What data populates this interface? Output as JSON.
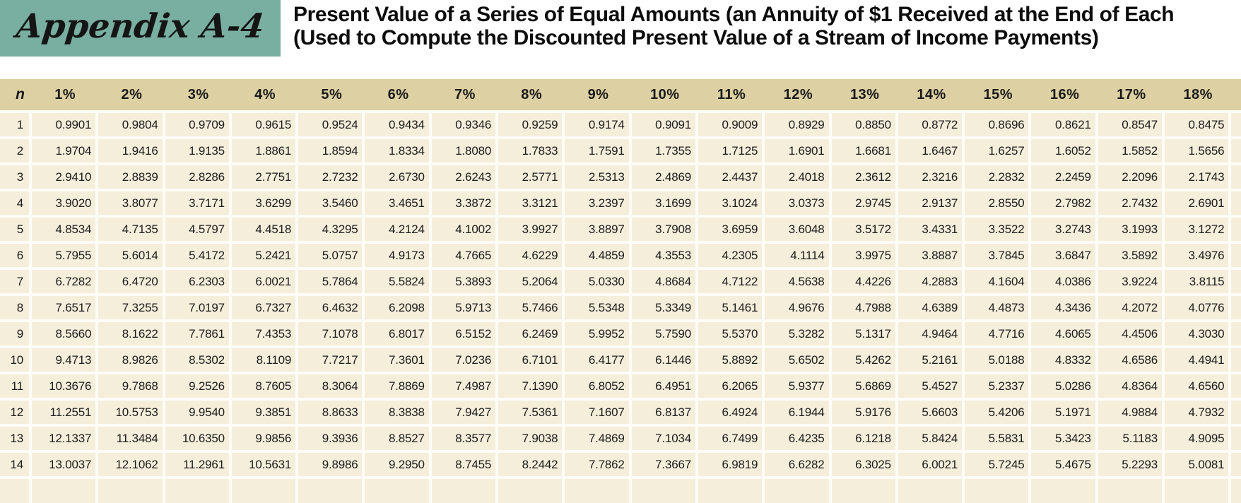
{
  "appendix": {
    "label": "Appendix A-4"
  },
  "title": {
    "line1": "Present Value of a Series of Equal Amounts (an Annuity of $1 Received at the End of Each",
    "line2": "(Used to Compute the Discounted Present Value of a Stream of Income Payments)"
  },
  "colors": {
    "appendix_box": "#78afa0",
    "header_band": "#ddd0a2",
    "cell_background": "#f5eedb",
    "text": "#1c1c1c"
  },
  "table": {
    "col_headers": [
      "n",
      "1%",
      "2%",
      "3%",
      "4%",
      "5%",
      "6%",
      "7%",
      "8%",
      "9%",
      "10%",
      "11%",
      "12%",
      "13%",
      "14%",
      "15%",
      "16%",
      "17%",
      "18%"
    ],
    "rows": [
      {
        "n": "1",
        "values": [
          "0.9901",
          "0.9804",
          "0.9709",
          "0.9615",
          "0.9524",
          "0.9434",
          "0.9346",
          "0.9259",
          "0.9174",
          "0.9091",
          "0.9009",
          "0.8929",
          "0.8850",
          "0.8772",
          "0.8696",
          "0.8621",
          "0.8547",
          "0.8475"
        ]
      },
      {
        "n": "2",
        "values": [
          "1.9704",
          "1.9416",
          "1.9135",
          "1.8861",
          "1.8594",
          "1.8334",
          "1.8080",
          "1.7833",
          "1.7591",
          "1.7355",
          "1.7125",
          "1.6901",
          "1.6681",
          "1.6467",
          "1.6257",
          "1.6052",
          "1.5852",
          "1.5656"
        ]
      },
      {
        "n": "3",
        "values": [
          "2.9410",
          "2.8839",
          "2.8286",
          "2.7751",
          "2.7232",
          "2.6730",
          "2.6243",
          "2.5771",
          "2.5313",
          "2.4869",
          "2.4437",
          "2.4018",
          "2.3612",
          "2.3216",
          "2.2832",
          "2.2459",
          "2.2096",
          "2.1743"
        ]
      },
      {
        "n": "4",
        "values": [
          "3.9020",
          "3.8077",
          "3.7171",
          "3.6299",
          "3.5460",
          "3.4651",
          "3.3872",
          "3.3121",
          "3.2397",
          "3.1699",
          "3.1024",
          "3.0373",
          "2.9745",
          "2.9137",
          "2.8550",
          "2.7982",
          "2.7432",
          "2.6901"
        ]
      },
      {
        "n": "5",
        "values": [
          "4.8534",
          "4.7135",
          "4.5797",
          "4.4518",
          "4.3295",
          "4.2124",
          "4.1002",
          "3.9927",
          "3.8897",
          "3.7908",
          "3.6959",
          "3.6048",
          "3.5172",
          "3.4331",
          "3.3522",
          "3.2743",
          "3.1993",
          "3.1272"
        ]
      },
      {
        "n": "6",
        "values": [
          "5.7955",
          "5.6014",
          "5.4172",
          "5.2421",
          "5.0757",
          "4.9173",
          "4.7665",
          "4.6229",
          "4.4859",
          "4.3553",
          "4.2305",
          "4.1114",
          "3.9975",
          "3.8887",
          "3.7845",
          "3.6847",
          "3.5892",
          "3.4976"
        ]
      },
      {
        "n": "7",
        "values": [
          "6.7282",
          "6.4720",
          "6.2303",
          "6.0021",
          "5.7864",
          "5.5824",
          "5.3893",
          "5.2064",
          "5.0330",
          "4.8684",
          "4.7122",
          "4.5638",
          "4.4226",
          "4.2883",
          "4.1604",
          "4.0386",
          "3.9224",
          "3.8115"
        ]
      },
      {
        "n": "8",
        "values": [
          "7.6517",
          "7.3255",
          "7.0197",
          "6.7327",
          "6.4632",
          "6.2098",
          "5.9713",
          "5.7466",
          "5.5348",
          "5.3349",
          "5.1461",
          "4.9676",
          "4.7988",
          "4.6389",
          "4.4873",
          "4.3436",
          "4.2072",
          "4.0776"
        ]
      },
      {
        "n": "9",
        "values": [
          "8.5660",
          "8.1622",
          "7.7861",
          "7.4353",
          "7.1078",
          "6.8017",
          "6.5152",
          "6.2469",
          "5.9952",
          "5.7590",
          "5.5370",
          "5.3282",
          "5.1317",
          "4.9464",
          "4.7716",
          "4.6065",
          "4.4506",
          "4.3030"
        ]
      },
      {
        "n": "10",
        "values": [
          "9.4713",
          "8.9826",
          "8.5302",
          "8.1109",
          "7.7217",
          "7.3601",
          "7.0236",
          "6.7101",
          "6.4177",
          "6.1446",
          "5.8892",
          "5.6502",
          "5.4262",
          "5.2161",
          "5.0188",
          "4.8332",
          "4.6586",
          "4.4941"
        ]
      },
      {
        "n": "11",
        "values": [
          "10.3676",
          "9.7868",
          "9.2526",
          "8.7605",
          "8.3064",
          "7.8869",
          "7.4987",
          "7.1390",
          "6.8052",
          "6.4951",
          "6.2065",
          "5.9377",
          "5.6869",
          "5.4527",
          "5.2337",
          "5.0286",
          "4.8364",
          "4.6560"
        ]
      },
      {
        "n": "12",
        "values": [
          "11.2551",
          "10.5753",
          "9.9540",
          "9.3851",
          "8.8633",
          "8.3838",
          "7.9427",
          "7.5361",
          "7.1607",
          "6.8137",
          "6.4924",
          "6.1944",
          "5.9176",
          "5.6603",
          "5.4206",
          "5.1971",
          "4.9884",
          "4.7932"
        ]
      },
      {
        "n": "13",
        "values": [
          "12.1337",
          "11.3484",
          "10.6350",
          "9.9856",
          "9.3936",
          "8.8527",
          "8.3577",
          "7.9038",
          "7.4869",
          "7.1034",
          "6.7499",
          "6.4235",
          "6.1218",
          "5.8424",
          "5.5831",
          "5.3423",
          "5.1183",
          "4.9095"
        ]
      },
      {
        "n": "14",
        "values": [
          "13.0037",
          "12.1062",
          "11.2961",
          "10.5631",
          "9.8986",
          "9.2950",
          "8.7455",
          "8.2442",
          "7.7862",
          "7.3667",
          "6.9819",
          "6.6282",
          "6.3025",
          "6.0021",
          "5.7245",
          "5.4675",
          "5.2293",
          "5.0081"
        ]
      }
    ]
  }
}
